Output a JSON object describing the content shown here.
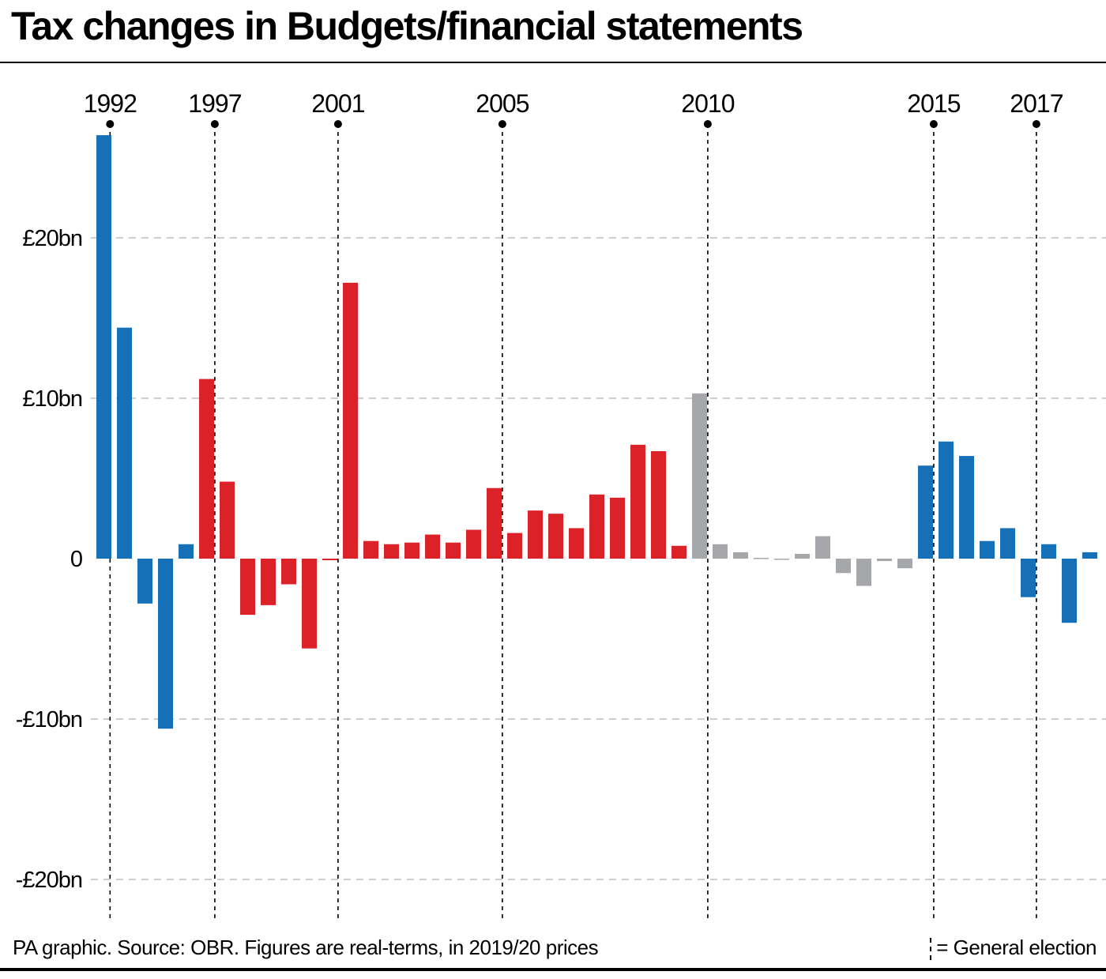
{
  "title": "Tax changes in Budgets/financial statements",
  "footer": {
    "source": "PA graphic. Source: OBR. Figures are real-terms, in 2019/20 prices",
    "legend_label": "= General election"
  },
  "colors": {
    "conservative": "#1570b7",
    "labour": "#dc2229",
    "coalition": "#a6a7aa",
    "gridline": "#bdbdbd",
    "election_line": "#000000"
  },
  "chart_data": {
    "type": "bar",
    "title": "Tax changes in Budgets/financial statements",
    "ylabel": "",
    "ylim": [
      -20,
      25
    ],
    "yticks": [
      {
        "value": 20,
        "label": "£20bn"
      },
      {
        "value": 10,
        "label": "£10bn"
      },
      {
        "value": 0,
        "label": "0"
      },
      {
        "value": -10,
        "label": "-£10bn"
      },
      {
        "value": -20,
        "label": "-£20bn"
      }
    ],
    "grid": true,
    "election_markers": [
      {
        "label": "1992",
        "after_bar": -0.2
      },
      {
        "label": "1997",
        "after_bar": 4.9
      },
      {
        "label": "2001",
        "after_bar": 10.9
      },
      {
        "label": "2005",
        "after_bar": 18.9
      },
      {
        "label": "2010",
        "after_bar": 28.9
      },
      {
        "label": "2015",
        "after_bar": 39.9
      },
      {
        "label": "2017",
        "after_bar": 44.9
      }
    ],
    "bars": [
      {
        "value": 26.4,
        "group": "conservative"
      },
      {
        "value": 14.4,
        "group": "conservative"
      },
      {
        "value": -2.8,
        "group": "conservative"
      },
      {
        "value": -10.6,
        "group": "conservative"
      },
      {
        "value": 0.9,
        "group": "conservative"
      },
      {
        "value": 11.2,
        "group": "labour"
      },
      {
        "value": 4.8,
        "group": "labour"
      },
      {
        "value": -3.5,
        "group": "labour"
      },
      {
        "value": -2.9,
        "group": "labour"
      },
      {
        "value": -1.6,
        "group": "labour"
      },
      {
        "value": -5.6,
        "group": "labour"
      },
      {
        "value": -0.1,
        "group": "labour"
      },
      {
        "value": 17.2,
        "group": "labour"
      },
      {
        "value": 1.1,
        "group": "labour"
      },
      {
        "value": 0.9,
        "group": "labour"
      },
      {
        "value": 1.0,
        "group": "labour"
      },
      {
        "value": 1.5,
        "group": "labour"
      },
      {
        "value": 1.0,
        "group": "labour"
      },
      {
        "value": 1.8,
        "group": "labour"
      },
      {
        "value": 4.4,
        "group": "labour"
      },
      {
        "value": 1.6,
        "group": "labour"
      },
      {
        "value": 3.0,
        "group": "labour"
      },
      {
        "value": 2.8,
        "group": "labour"
      },
      {
        "value": 1.9,
        "group": "labour"
      },
      {
        "value": 4.0,
        "group": "labour"
      },
      {
        "value": 3.8,
        "group": "labour"
      },
      {
        "value": 7.1,
        "group": "labour"
      },
      {
        "value": 6.7,
        "group": "labour"
      },
      {
        "value": 0.8,
        "group": "labour"
      },
      {
        "value": 10.3,
        "group": "coalition"
      },
      {
        "value": 0.9,
        "group": "coalition"
      },
      {
        "value": 0.4,
        "group": "coalition"
      },
      {
        "value": 0.05,
        "group": "coalition"
      },
      {
        "value": -0.05,
        "group": "coalition"
      },
      {
        "value": 0.3,
        "group": "coalition"
      },
      {
        "value": 1.4,
        "group": "coalition"
      },
      {
        "value": -0.9,
        "group": "coalition"
      },
      {
        "value": -1.7,
        "group": "coalition"
      },
      {
        "value": -0.15,
        "group": "coalition"
      },
      {
        "value": -0.6,
        "group": "coalition"
      },
      {
        "value": 5.8,
        "group": "conservative"
      },
      {
        "value": 7.3,
        "group": "conservative"
      },
      {
        "value": 6.4,
        "group": "conservative"
      },
      {
        "value": 1.1,
        "group": "conservative"
      },
      {
        "value": 1.9,
        "group": "conservative"
      },
      {
        "value": -2.4,
        "group": "conservative"
      },
      {
        "value": 0.9,
        "group": "conservative"
      },
      {
        "value": -4.0,
        "group": "conservative"
      },
      {
        "value": 0.4,
        "group": "conservative"
      }
    ]
  }
}
